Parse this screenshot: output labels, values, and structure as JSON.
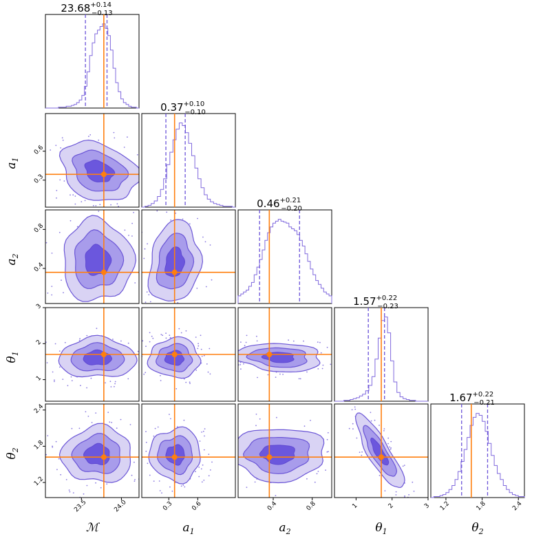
{
  "chart_data": {
    "type": "corner",
    "parameters": [
      {
        "key": "M",
        "label": "ℳ",
        "sub": "",
        "range": [
          23.05,
          24.22
        ],
        "ticks": [
          23.5,
          24.0
        ],
        "tick_labels": [
          "23.5",
          "24.0"
        ],
        "truth": 23.78,
        "title_value": "23.68",
        "title_plus": "+0.14",
        "title_minus": "−0.13",
        "median": 23.68,
        "q_low": 23.55,
        "q_high": 23.82
      },
      {
        "key": "a1",
        "label": "a",
        "sub": "1",
        "range": [
          0.02,
          0.99
        ],
        "ticks": [
          0.3,
          0.6
        ],
        "tick_labels": [
          "0.3",
          "0.6"
        ],
        "truth": 0.36,
        "title_value": "0.37",
        "title_plus": "+0.10",
        "title_minus": "−0.10",
        "median": 0.37,
        "q_low": 0.27,
        "q_high": 0.47
      },
      {
        "key": "a2",
        "label": "a",
        "sub": "2",
        "range": [
          0.04,
          1.0
        ],
        "ticks": [
          0.4,
          0.8
        ],
        "tick_labels": [
          "0.4",
          "0.8"
        ],
        "truth": 0.36,
        "title_value": "0.46",
        "title_plus": "+0.21",
        "title_minus": "−0.20",
        "median": 0.46,
        "q_low": 0.26,
        "q_high": 0.67
      },
      {
        "key": "t1",
        "label": "θ",
        "sub": "1",
        "range": [
          0.4,
          3.0
        ],
        "ticks": [
          1,
          2,
          3
        ],
        "tick_labels": [
          "1",
          "2",
          "3"
        ],
        "truth": 1.7,
        "title_value": "1.57",
        "title_plus": "+0.22",
        "title_minus": "−0.23",
        "median": 1.57,
        "q_low": 1.34,
        "q_high": 1.79
      },
      {
        "key": "t2",
        "label": "θ",
        "sub": "2",
        "range": [
          0.95,
          2.5
        ],
        "ticks": [
          1.2,
          1.8,
          2.4
        ],
        "tick_labels": [
          "1.2",
          "1.8",
          "2.4"
        ],
        "truth": 1.62,
        "title_value": "1.67",
        "title_plus": "+0.22",
        "title_minus": "−0.21",
        "median": 1.67,
        "q_low": 1.46,
        "q_high": 1.89
      }
    ],
    "histograms": [
      [
        0,
        0,
        0,
        0,
        0,
        1,
        1,
        1,
        2,
        2,
        3,
        4,
        6,
        9,
        14,
        24,
        40,
        58,
        72,
        82,
        86,
        90,
        93,
        88,
        80,
        64,
        44,
        28,
        18,
        10,
        6,
        4,
        2,
        1,
        1,
        0
      ],
      [
        0,
        1,
        2,
        4,
        7,
        12,
        20,
        32,
        48,
        62,
        76,
        88,
        95,
        92,
        84,
        72,
        58,
        44,
        32,
        22,
        14,
        9,
        6,
        4,
        3,
        2,
        1,
        1,
        1,
        0
      ],
      [
        8,
        10,
        12,
        14,
        18,
        22,
        30,
        38,
        46,
        56,
        66,
        74,
        80,
        84,
        86,
        88,
        86,
        85,
        84,
        80,
        78,
        76,
        72,
        66,
        60,
        52,
        44,
        36,
        30,
        24,
        20,
        16,
        12,
        10,
        8
      ],
      [
        0,
        0,
        0,
        1,
        1,
        2,
        3,
        4,
        6,
        8,
        12,
        18,
        28,
        48,
        72,
        92,
        96,
        78,
        46,
        22,
        10,
        5,
        3,
        2,
        1,
        1,
        0,
        0,
        0,
        0
      ],
      [
        0,
        1,
        1,
        2,
        3,
        5,
        8,
        12,
        18,
        26,
        36,
        48,
        60,
        72,
        80,
        84,
        82,
        76,
        66,
        54,
        42,
        32,
        24,
        18,
        12,
        8,
        5,
        3,
        2,
        1,
        1
      ]
    ],
    "pairs": [
      {
        "row": 1,
        "col": 0,
        "center": [
          23.72,
          0.39
        ],
        "sd": [
          0.22,
          0.14
        ],
        "rho": -0.25
      },
      {
        "row": 2,
        "col": 0,
        "center": [
          23.7,
          0.48
        ],
        "sd": [
          0.2,
          0.19
        ],
        "rho": 0.0
      },
      {
        "row": 2,
        "col": 1,
        "center": [
          0.36,
          0.46
        ],
        "sd": [
          0.12,
          0.19
        ],
        "rho": 0.15
      },
      {
        "row": 3,
        "col": 0,
        "center": [
          23.7,
          1.6
        ],
        "sd": [
          0.22,
          0.25
        ],
        "rho": 0.0
      },
      {
        "row": 3,
        "col": 1,
        "center": [
          0.36,
          1.6
        ],
        "sd": [
          0.12,
          0.25
        ],
        "rho": 0.0
      },
      {
        "row": 3,
        "col": 2,
        "center": [
          0.46,
          1.62
        ],
        "sd": [
          0.2,
          0.18
        ],
        "rho": -0.15
      },
      {
        "row": 4,
        "col": 0,
        "center": [
          23.7,
          1.66
        ],
        "sd": [
          0.2,
          0.21
        ],
        "rho": 0.0
      },
      {
        "row": 4,
        "col": 1,
        "center": [
          0.37,
          1.66
        ],
        "sd": [
          0.12,
          0.2
        ],
        "rho": 0.0
      },
      {
        "row": 4,
        "col": 2,
        "center": [
          0.45,
          1.67
        ],
        "sd": [
          0.22,
          0.2
        ],
        "rho": 0.0
      },
      {
        "row": 4,
        "col": 3,
        "center": [
          1.65,
          1.7
        ],
        "sd": [
          0.3,
          0.28
        ],
        "rho": -0.85
      }
    ],
    "colors": {
      "contour_outer": "#d9d3f4",
      "contour_mid": "#a89ceb",
      "contour_inner": "#6b57dd",
      "histogram": "#7f68dd",
      "truth": "#ff7f0e"
    }
  }
}
